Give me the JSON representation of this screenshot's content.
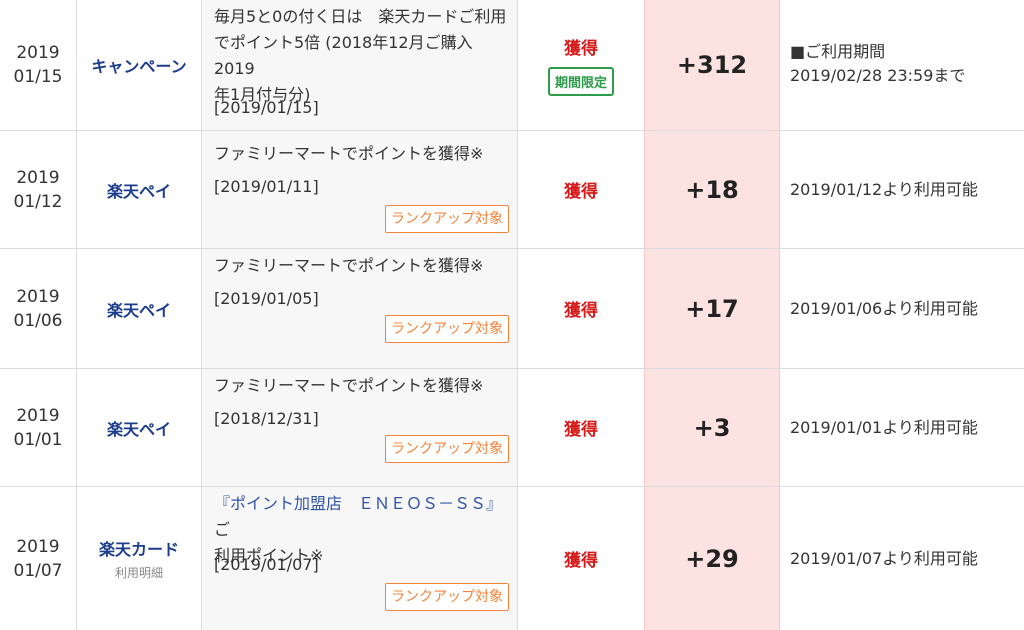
{
  "rows": [
    {
      "date_year": "2019",
      "date_md": "01/15",
      "service": "キャンペーン",
      "service_sub": "",
      "detail_lines": [
        "毎月5と0の付く日は　楽天カードご利用",
        "でポイント5倍 (2018年12月ご購入2019",
        "年1月付与分)"
      ],
      "detail_date": "[2019/01/15]",
      "rank_badge": "",
      "action": "獲得",
      "limited_badge": "期間限定",
      "points": "+312",
      "note_lines": [
        "■ご利用期間",
        "2019/02/28 23:59まで"
      ]
    },
    {
      "date_year": "2019",
      "date_md": "01/12",
      "service": "楽天ペイ",
      "service_sub": "",
      "detail_lines": [
        "ファミリーマートでポイントを獲得※"
      ],
      "detail_date": "[2019/01/11]",
      "rank_badge": "ランクアップ対象",
      "action": "獲得",
      "limited_badge": "",
      "points": "+18",
      "note_lines": [
        "2019/01/12より利用可能"
      ]
    },
    {
      "date_year": "2019",
      "date_md": "01/06",
      "service": "楽天ペイ",
      "service_sub": "",
      "detail_lines": [
        "ファミリーマートでポイントを獲得※"
      ],
      "detail_date": "[2019/01/05]",
      "rank_badge": "ランクアップ対象",
      "action": "獲得",
      "limited_badge": "",
      "points": "+17",
      "note_lines": [
        "2019/01/06より利用可能"
      ]
    },
    {
      "date_year": "2019",
      "date_md": "01/01",
      "service": "楽天ペイ",
      "service_sub": "",
      "detail_lines": [
        "ファミリーマートでポイントを獲得※"
      ],
      "detail_date": "[2018/12/31]",
      "rank_badge": "ランクアップ対象",
      "action": "獲得",
      "limited_badge": "",
      "points": "+3",
      "note_lines": [
        "2019/01/01より利用可能"
      ]
    },
    {
      "date_year": "2019",
      "date_md": "01/07",
      "service": "楽天カード",
      "service_sub": "利用明細",
      "detail_link": "『ポイント加盟店　ＥＮＥＯＳ－ＳＳ』",
      "detail_lines": [
        "ご",
        "利用ポイント※"
      ],
      "detail_date": "[2019/01/07]",
      "rank_badge": "ランクアップ対象",
      "action": "獲得",
      "limited_badge": "",
      "points": "+29",
      "note_lines": [
        "2019/01/07より利用可能"
      ]
    }
  ],
  "colors": {
    "service_blue": "#1c3c8c",
    "action_red": "#d61a1a",
    "limited_green": "#2e9b4b",
    "rank_orange": "#f0843a",
    "points_bg": "#fde2e2",
    "detail_bg": "#f7f7f7"
  }
}
